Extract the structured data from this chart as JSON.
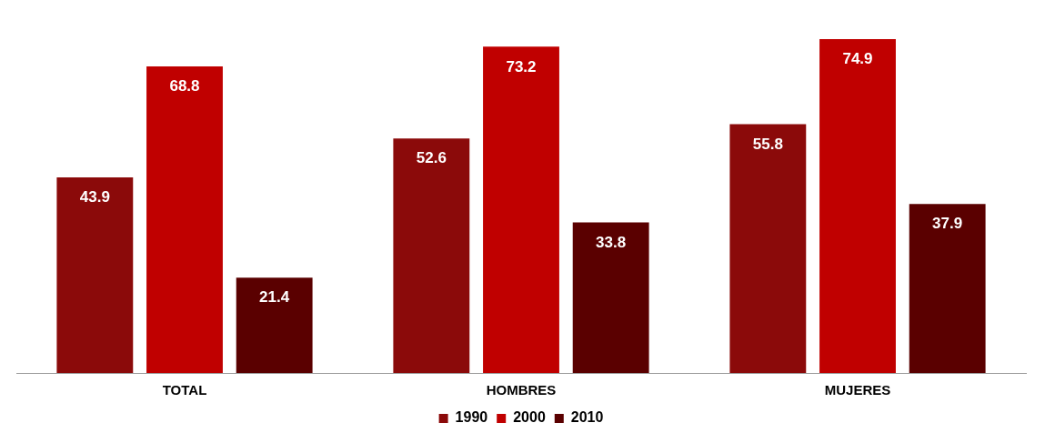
{
  "chart_data": {
    "type": "bar",
    "categories": [
      "TOTAL",
      "HOMBRES",
      "MUJERES"
    ],
    "series": [
      {
        "name": "1990",
        "color": "#8b0a0a",
        "values": [
          43.9,
          52.6,
          55.8
        ]
      },
      {
        "name": "2000",
        "color": "#c00000",
        "values": [
          68.8,
          73.2,
          74.9
        ]
      },
      {
        "name": "2010",
        "color": "#5a0000",
        "values": [
          21.4,
          33.8,
          37.9
        ]
      }
    ],
    "data_labels": true,
    "legend": "bottom",
    "grid": false
  }
}
